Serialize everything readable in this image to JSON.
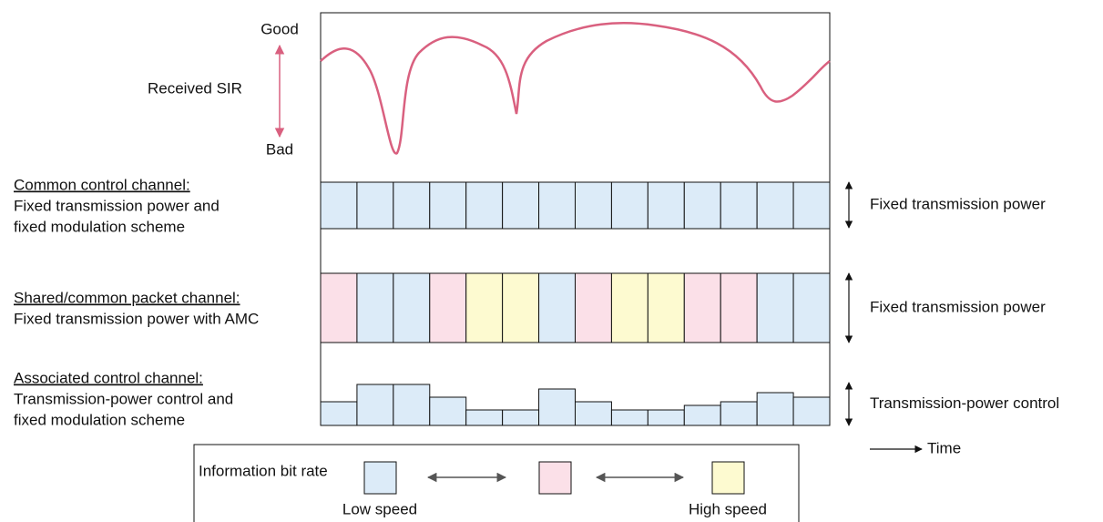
{
  "sir": {
    "good": "Good",
    "label": "Received SIR",
    "bad": "Bad"
  },
  "channels": [
    {
      "title": "Common control channel:",
      "lines": [
        "Fixed transmission power and",
        "fixed modulation scheme"
      ],
      "note": "Fixed transmission power"
    },
    {
      "title": "Shared/common packet channel:",
      "lines": [
        "Fixed transmission power with AMC"
      ],
      "note": "Fixed transmission power"
    },
    {
      "title": "Associated control channel:",
      "lines": [
        "Transmission-power control and",
        "fixed modulation scheme"
      ],
      "note": "Transmission-power control"
    }
  ],
  "time": "Time",
  "legend": {
    "title": "Information bit rate",
    "low": "Low speed",
    "high": "High speed"
  }
}
